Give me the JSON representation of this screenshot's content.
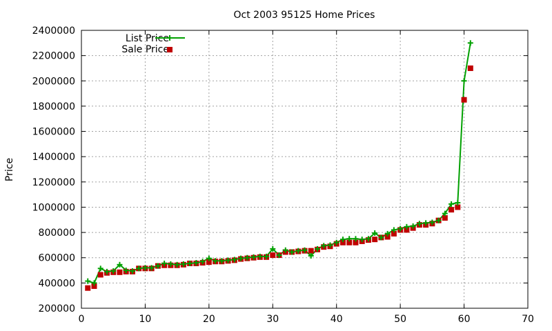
{
  "chart_data": {
    "type": "line",
    "title": "Oct 2003 95125 Home Prices",
    "xlabel": "",
    "ylabel": "Price",
    "xlim": [
      0,
      70
    ],
    "ylim": [
      200000,
      2400000
    ],
    "xticks": [
      0,
      10,
      20,
      30,
      40,
      50,
      60,
      70
    ],
    "yticks": [
      200000,
      400000,
      600000,
      800000,
      1000000,
      1200000,
      1400000,
      1600000,
      1800000,
      2000000,
      2200000,
      2400000
    ],
    "grid": true,
    "legend_position": "top-left",
    "series": [
      {
        "name": "List Price",
        "style": "lines+crosses",
        "color": "#00a000",
        "x": [
          1,
          2,
          3,
          4,
          5,
          6,
          7,
          8,
          9,
          10,
          11,
          12,
          13,
          14,
          15,
          16,
          17,
          18,
          19,
          20,
          21,
          22,
          23,
          24,
          25,
          26,
          27,
          28,
          29,
          30,
          31,
          32,
          33,
          34,
          35,
          36,
          37,
          38,
          39,
          40,
          41,
          42,
          43,
          44,
          45,
          46,
          47,
          48,
          49,
          50,
          51,
          52,
          53,
          54,
          55,
          56,
          57,
          58,
          59,
          60,
          61
        ],
        "y": [
          415000,
          400000,
          515000,
          490000,
          495000,
          545000,
          500000,
          495000,
          515000,
          520000,
          520000,
          535000,
          555000,
          550000,
          545000,
          550000,
          555000,
          560000,
          570000,
          595000,
          575000,
          575000,
          580000,
          585000,
          595000,
          600000,
          605000,
          610000,
          610000,
          670000,
          620000,
          660000,
          645000,
          655000,
          660000,
          615000,
          670000,
          695000,
          700000,
          720000,
          745000,
          750000,
          750000,
          745000,
          750000,
          795000,
          760000,
          790000,
          820000,
          830000,
          845000,
          850000,
          870000,
          875000,
          880000,
          895000,
          950000,
          1025000,
          1035000,
          2000000,
          2300000
        ]
      },
      {
        "name": "Sale Price",
        "style": "points",
        "color": "#c00000",
        "x": [
          1,
          2,
          3,
          4,
          5,
          6,
          7,
          8,
          9,
          10,
          11,
          12,
          13,
          14,
          15,
          16,
          17,
          18,
          19,
          20,
          21,
          22,
          23,
          24,
          25,
          26,
          27,
          28,
          29,
          30,
          31,
          32,
          33,
          34,
          35,
          36,
          37,
          38,
          39,
          40,
          41,
          42,
          43,
          44,
          45,
          46,
          47,
          48,
          49,
          50,
          51,
          52,
          53,
          54,
          55,
          56,
          57,
          58,
          59,
          60,
          61
        ],
        "y": [
          360000,
          375000,
          465000,
          480000,
          485000,
          485000,
          490000,
          490000,
          515000,
          515000,
          515000,
          535000,
          540000,
          540000,
          540000,
          545000,
          555000,
          555000,
          560000,
          565000,
          570000,
          570000,
          575000,
          580000,
          590000,
          595000,
          600000,
          605000,
          605000,
          620000,
          620000,
          645000,
          645000,
          650000,
          655000,
          655000,
          665000,
          685000,
          690000,
          710000,
          720000,
          720000,
          720000,
          730000,
          740000,
          745000,
          760000,
          765000,
          790000,
          820000,
          820000,
          835000,
          860000,
          860000,
          870000,
          895000,
          915000,
          980000,
          1000000,
          1850000,
          2100000
        ]
      }
    ]
  }
}
